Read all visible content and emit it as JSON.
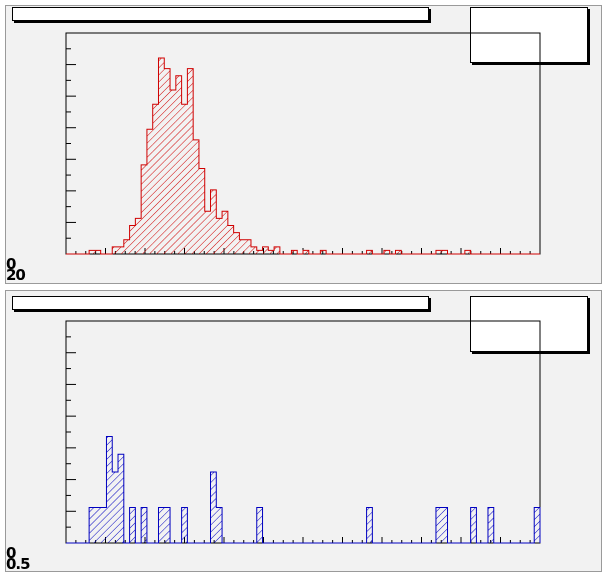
{
  "chart_data": [
    {
      "type": "histogram",
      "title": "",
      "stats": "",
      "xlabel": "",
      "ylabel": "",
      "bins": 82,
      "color": "#d00000",
      "fill": "hatched",
      "y_tick_labels": [
        "0",
        "20"
      ],
      "values": [
        0,
        0,
        0,
        0,
        1,
        1,
        0,
        0,
        2,
        2,
        4,
        8,
        10,
        25,
        35,
        42,
        55,
        52,
        46,
        50,
        42,
        52,
        32,
        24,
        12,
        18,
        10,
        12,
        8,
        6,
        4,
        4,
        2,
        1,
        2,
        1,
        2,
        0,
        0,
        1,
        0,
        1,
        0,
        0,
        1,
        0,
        0,
        0,
        0,
        0,
        0,
        0,
        1,
        0,
        0,
        1,
        0,
        1,
        0,
        0,
        0,
        0,
        0,
        0,
        1,
        1,
        0,
        0,
        0,
        1,
        0,
        0,
        0,
        0,
        0,
        0,
        0,
        0,
        0,
        0,
        0,
        0
      ]
    },
    {
      "type": "histogram",
      "title": "",
      "stats": "",
      "xlabel": "",
      "ylabel": "",
      "bins": 82,
      "color": "#0000c0",
      "fill": "hatched",
      "y_tick_labels": [
        "0",
        "0.5"
      ],
      "values": [
        0,
        0,
        0,
        0,
        2,
        2,
        2,
        6,
        4,
        5,
        0,
        2,
        0,
        2,
        0,
        0,
        2,
        2,
        0,
        0,
        2,
        0,
        0,
        0,
        0,
        4,
        2,
        0,
        0,
        0,
        0,
        0,
        0,
        2,
        0,
        0,
        0,
        0,
        0,
        0,
        0,
        0,
        0,
        0,
        0,
        0,
        0,
        0,
        0,
        0,
        0,
        0,
        2,
        0,
        0,
        0,
        0,
        0,
        0,
        0,
        0,
        0,
        0,
        0,
        2,
        2,
        0,
        0,
        0,
        0,
        2,
        0,
        0,
        2,
        0,
        0,
        0,
        0,
        0,
        0,
        0,
        2
      ]
    }
  ]
}
